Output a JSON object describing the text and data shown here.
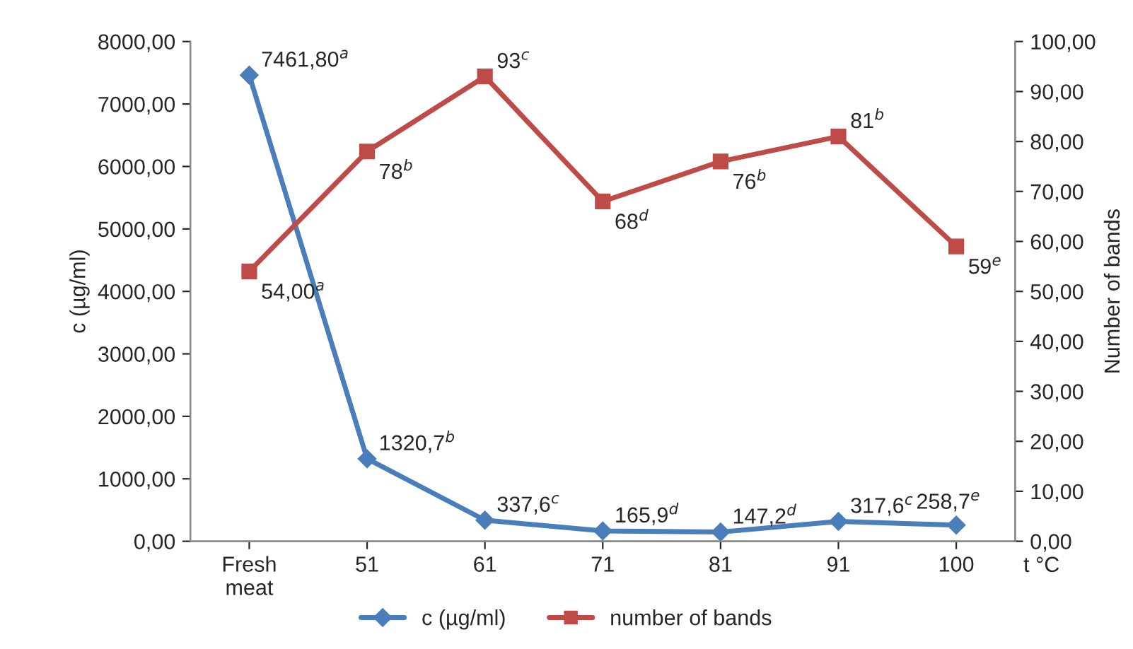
{
  "chart_data": {
    "type": "line",
    "categories": [
      "Fresh\nmeat",
      "51",
      "61",
      "71",
      "81",
      "91",
      "100"
    ],
    "xlabel": "t °C",
    "ylabel": "c (µg/ml)",
    "y2label": "Number of bands",
    "series": [
      {
        "name": "c (µg/ml)",
        "color": "#4a7ebb",
        "marker": "diamond",
        "values": [
          7461.8,
          1320.7,
          337.6,
          165.9,
          147.2,
          317.6,
          258.7
        ],
        "value_labels": [
          "7461,80$^{a}$",
          "1320,7$^{b}$",
          "337,6$^{c}$",
          "165,9$^{d}$",
          "147,2$^{d}$",
          "317,6$^{c}$",
          "258,7$^{e}$"
        ]
      },
      {
        "name": "number of bands",
        "color": "#be4b48",
        "marker": "square",
        "axis": "y2",
        "values": [
          54,
          78,
          93,
          68,
          76,
          81,
          59
        ],
        "value_labels": [
          "54,00$^{a}$",
          "78$^{b}$",
          "93$^{c}$",
          "68$^{d}$",
          "76$^{b}$",
          "81$^{b}$",
          "59$^{e}$"
        ]
      }
    ],
    "ylim": [
      0,
      8000
    ],
    "yticks": [
      {
        "value": 0,
        "label": "0,00"
      },
      {
        "value": 1000,
        "label": "1000,00"
      },
      {
        "value": 2000,
        "label": "2000,00"
      },
      {
        "value": 3000,
        "label": "3000,00"
      },
      {
        "value": 4000,
        "label": "4000,00"
      },
      {
        "value": 5000,
        "label": "5000,00"
      },
      {
        "value": 6000,
        "label": "6000,00"
      },
      {
        "value": 7000,
        "label": "7000,00"
      },
      {
        "value": 8000,
        "label": "8000,00"
      }
    ],
    "y2lim": [
      0,
      100
    ],
    "y2ticks": [
      {
        "value": 0,
        "label": "0,00"
      },
      {
        "value": 10,
        "label": "10,00"
      },
      {
        "value": 20,
        "label": "20,00"
      },
      {
        "value": 30,
        "label": "30,00"
      },
      {
        "value": 40,
        "label": "40,00"
      },
      {
        "value": 50,
        "label": "50,00"
      },
      {
        "value": 60,
        "label": "60,00"
      },
      {
        "value": 70,
        "label": "70,00"
      },
      {
        "value": 80,
        "label": "80,00"
      },
      {
        "value": 90,
        "label": "90,00"
      },
      {
        "value": 100,
        "label": "100,00"
      }
    ],
    "legend": "bottom",
    "grid": false,
    "line_style": "solid"
  }
}
